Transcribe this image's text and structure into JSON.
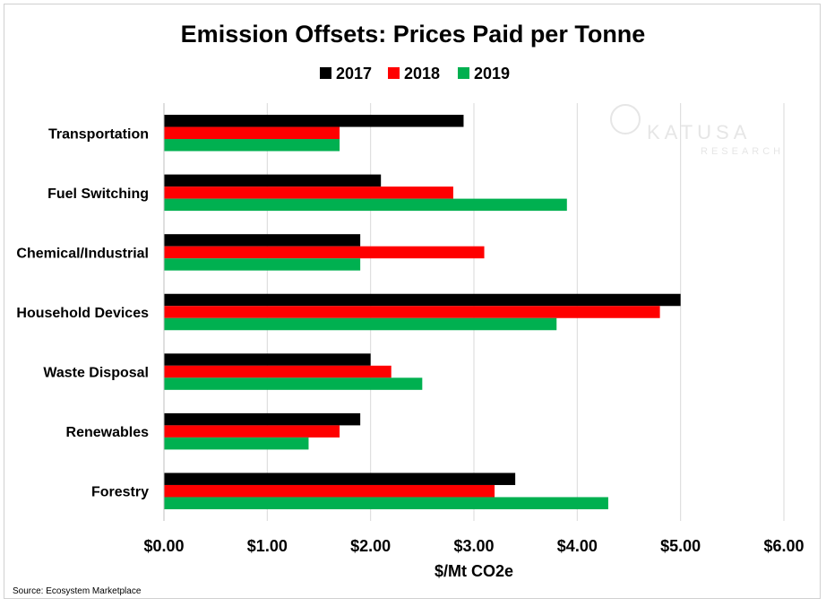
{
  "chart_data": {
    "type": "bar",
    "orientation": "horizontal",
    "title": "Emission Offsets: Prices Paid per Tonne",
    "xlabel": "$/Mt CO2e",
    "ylabel": "",
    "categories": [
      "Transportation",
      "Fuel Switching",
      "Chemical/Industrial",
      "Household Devices",
      "Waste Disposal",
      "Renewables",
      "Forestry"
    ],
    "series": [
      {
        "name": "2017",
        "color": "#000000",
        "values": [
          2.9,
          2.1,
          1.9,
          5.0,
          2.0,
          1.9,
          3.4
        ]
      },
      {
        "name": "2018",
        "color": "#ff0000",
        "values": [
          1.7,
          2.8,
          3.1,
          4.8,
          2.2,
          1.7,
          3.2
        ]
      },
      {
        "name": "2019",
        "color": "#00b050",
        "values": [
          1.7,
          3.9,
          1.9,
          3.8,
          2.5,
          1.4,
          4.3
        ]
      }
    ],
    "xlim": [
      0,
      6
    ],
    "xticks": [
      "$0.00",
      "$1.00",
      "$2.00",
      "$3.00",
      "$4.00",
      "$5.00",
      "$6.00"
    ],
    "grid": true,
    "legend_position": "top"
  },
  "source": "Source: Ecosystem Marketplace",
  "watermark": {
    "name": "KATUSA",
    "sub": "RESEARCH"
  }
}
